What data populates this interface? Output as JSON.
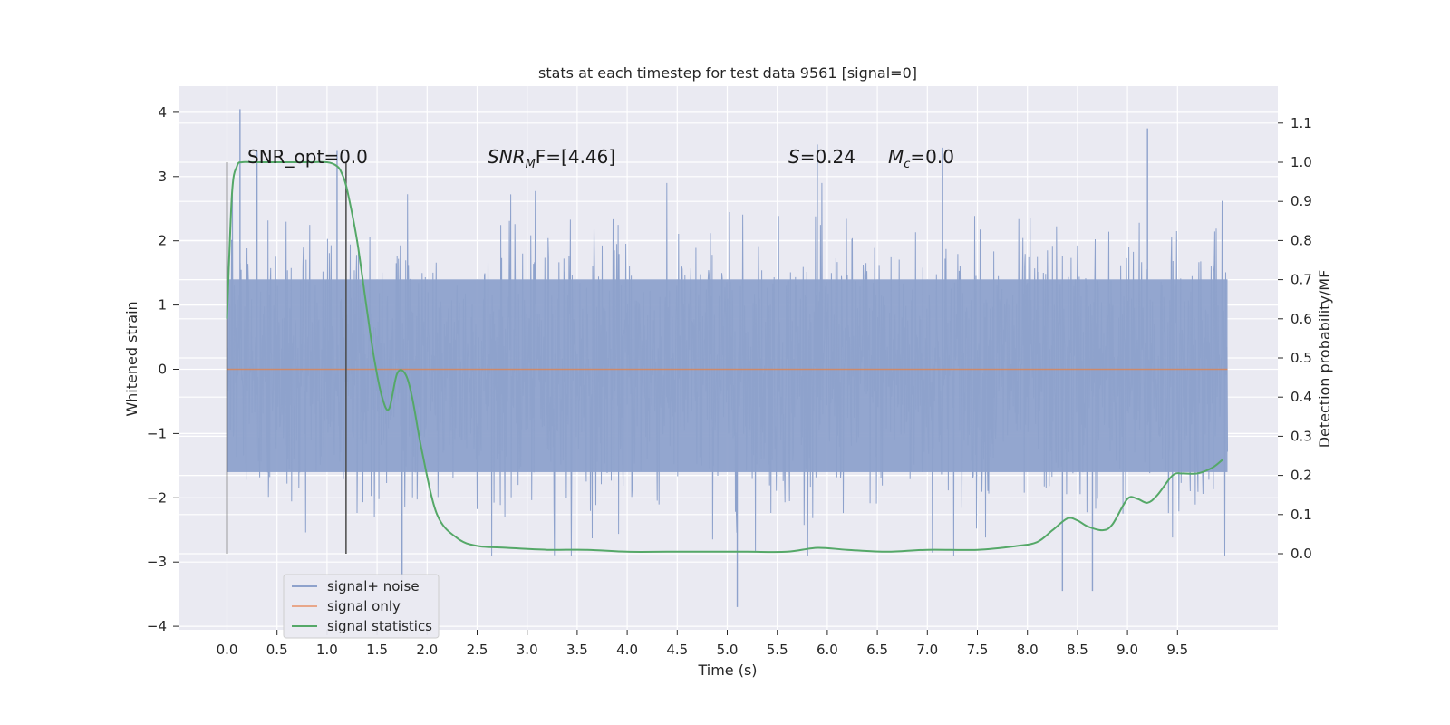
{
  "chart_data": {
    "type": "line",
    "title": "stats at each timestep for test data 9561 [signal=0]",
    "xlabel": "Time (s)",
    "ylabel_left": "Whitened strain",
    "ylabel_right": "Detection probability/MF",
    "xlim": [
      -0.5,
      10.5
    ],
    "ylim_left": [
      -4.1,
      4.4
    ],
    "ylim_right": [
      -0.2,
      1.2
    ],
    "x_ticks": [
      "0.0",
      "0.5",
      "1.0",
      "1.5",
      "2.0",
      "2.5",
      "3.0",
      "3.5",
      "4.0",
      "4.5",
      "5.0",
      "5.5",
      "6.0",
      "6.5",
      "7.0",
      "7.5",
      "8.0",
      "8.5",
      "9.0",
      "9.5"
    ],
    "y_ticks_left": [
      "4",
      "3",
      "2",
      "1",
      "0",
      "−1",
      "−2",
      "−3",
      "−4"
    ],
    "y_ticks_right": [
      "1.1",
      "1.0",
      "0.9",
      "0.8",
      "0.7",
      "0.6",
      "0.5",
      "0.4",
      "0.3",
      "0.2",
      "0.1",
      "0.0"
    ],
    "grid": true,
    "legend_position": "lower-left",
    "colors": {
      "noise": "#8ea2cc",
      "signal": "#dd8452",
      "stats": "#55a868",
      "background": "#eaeaf2",
      "vline": "#4a4a4a"
    },
    "annotations": {
      "snr_opt": "SNR_opt=0.0",
      "snr_mf_label": "SNR",
      "snr_mf_sub": "M",
      "snr_mf_rest": "F=[4.46]",
      "s_label": "S",
      "s_value": "=0.24",
      "mc_label": "M",
      "mc_sub": "c",
      "mc_value": "=0.0"
    },
    "vertical_lines_x": [
      0.0,
      1.19
    ],
    "series": [
      {
        "name": "signal+ noise",
        "axis": "left",
        "x_range": [
          0.0,
          10.0
        ],
        "envelope_approx": [
          1.4,
          -1.6
        ],
        "notable_peaks": [
          {
            "x": 0.13,
            "y": 4.05
          },
          {
            "x": 0.3,
            "y": 3.4
          },
          {
            "x": 1.1,
            "y": 3.4
          },
          {
            "x": 5.9,
            "y": 3.5
          },
          {
            "x": 7.15,
            "y": 3.45
          },
          {
            "x": 9.2,
            "y": 3.75
          },
          {
            "x": 5.1,
            "y": -3.7
          },
          {
            "x": 8.35,
            "y": -3.45
          },
          {
            "x": 8.65,
            "y": -3.45
          },
          {
            "x": 1.75,
            "y": -3.3
          }
        ]
      },
      {
        "name": "signal only",
        "axis": "left",
        "x": [
          0.0,
          10.0
        ],
        "y": [
          0.0,
          0.0
        ]
      },
      {
        "name": "signal statistics",
        "axis": "right",
        "x": [
          0.0,
          0.05,
          0.1,
          0.15,
          0.25,
          0.5,
          0.8,
          1.0,
          1.1,
          1.15,
          1.2,
          1.3,
          1.4,
          1.47,
          1.55,
          1.62,
          1.7,
          1.78,
          1.85,
          1.95,
          2.1,
          2.3,
          2.5,
          2.8,
          3.2,
          3.6,
          4.0,
          4.4,
          4.8,
          5.2,
          5.6,
          5.9,
          6.2,
          6.6,
          7.0,
          7.5,
          7.9,
          8.1,
          8.25,
          8.4,
          8.5,
          8.6,
          8.75,
          8.85,
          9.0,
          9.1,
          9.2,
          9.3,
          9.45,
          9.55,
          9.7,
          9.85,
          9.95
        ],
        "y": [
          0.6,
          0.92,
          0.99,
          1.0,
          1.0,
          1.0,
          1.0,
          1.0,
          0.99,
          0.97,
          0.93,
          0.8,
          0.62,
          0.5,
          0.4,
          0.37,
          0.46,
          0.46,
          0.4,
          0.26,
          0.1,
          0.04,
          0.02,
          0.015,
          0.01,
          0.01,
          0.005,
          0.005,
          0.005,
          0.005,
          0.005,
          0.015,
          0.01,
          0.005,
          0.01,
          0.01,
          0.02,
          0.03,
          0.06,
          0.09,
          0.085,
          0.07,
          0.06,
          0.075,
          0.14,
          0.14,
          0.13,
          0.15,
          0.2,
          0.205,
          0.205,
          0.22,
          0.24
        ]
      }
    ]
  }
}
